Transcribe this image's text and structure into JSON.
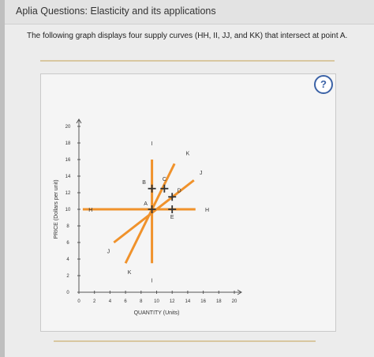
{
  "header": {
    "title": "Aplia Questions: Elasticity and its applications"
  },
  "question": {
    "instruction": "The following graph displays four supply curves (HH, II, JJ, and KK) that intersect at point A.",
    "help_label": "?"
  },
  "colors": {
    "curve": "#f0922b",
    "handle": "#333333",
    "help_blue": "#3b62a6"
  },
  "chart_data": {
    "type": "line",
    "xlabel": "QUANTITY (Units)",
    "ylabel": "PRICE (Dollars per unit)",
    "xlim": [
      0,
      20
    ],
    "ylim": [
      0,
      20
    ],
    "x_ticks": [
      0,
      2,
      4,
      6,
      8,
      10,
      12,
      14,
      16,
      18,
      20
    ],
    "y_ticks": [
      0,
      2,
      4,
      6,
      8,
      10,
      12,
      14,
      16,
      18,
      20
    ],
    "grid": false,
    "curves": [
      {
        "name": "H",
        "x": [
          0.5,
          15
        ],
        "y": [
          10,
          10
        ],
        "labels": [
          {
            "text": "H",
            "x": 1.5,
            "y": 10
          },
          {
            "text": "H",
            "x": 16.5,
            "y": 10
          }
        ]
      },
      {
        "name": "I",
        "x": [
          9.4,
          9.4
        ],
        "y": [
          3.5,
          16
        ],
        "labels": [
          {
            "text": "I",
            "x": 9.4,
            "y": 18
          },
          {
            "text": "I",
            "x": 9.4,
            "y": 1.5
          }
        ]
      },
      {
        "name": "J",
        "x": [
          4.5,
          14.8
        ],
        "y": [
          6,
          13.5
        ],
        "labels": [
          {
            "text": "J",
            "x": 3.8,
            "y": 5
          },
          {
            "text": "J",
            "x": 15.7,
            "y": 14.5
          }
        ]
      },
      {
        "name": "K",
        "x": [
          6,
          12.3
        ],
        "y": [
          3.5,
          15.5
        ],
        "labels": [
          {
            "text": "K",
            "x": 6.5,
            "y": 2.5
          },
          {
            "text": "K",
            "x": 14,
            "y": 16.8
          }
        ]
      }
    ],
    "points": [
      {
        "label": "A",
        "x": 9.4,
        "y": 10
      },
      {
        "label": "B",
        "x": 9.4,
        "y": 12.5
      },
      {
        "label": "C",
        "x": 11,
        "y": 12.5
      },
      {
        "label": "D",
        "x": 12,
        "y": 11.5
      },
      {
        "label": "E",
        "x": 12,
        "y": 10
      }
    ]
  }
}
